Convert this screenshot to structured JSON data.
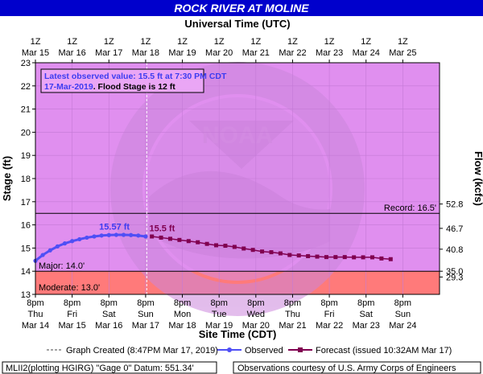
{
  "title": "ROCK RIVER AT MOLINE",
  "top_axis_title": "Universal Time (UTC)",
  "bottom_axis_title": "Site Time (CDT)",
  "colors": {
    "title_bg": "#0000cc",
    "plot_bg": "#e08fef",
    "flood_band": "#ff7a7a",
    "observed": "#4f4ff5",
    "forecast": "#800050",
    "reference_line": "#000000",
    "observed_label": "#3c3cf0",
    "forecast_label": "#800050"
  },
  "info_box": {
    "line1": "Latest observed value: 15.5 ft at 7:30 PM CDT",
    "line2_date": "17-Mar-2019",
    "line2_rest": ". Flood Stage is 12 ft"
  },
  "legend": {
    "created": "Graph Created (8:47PM Mar 17, 2019)",
    "observed": "Observed",
    "forecast": "Forecast (issued 10:32AM Mar 17)"
  },
  "footer": {
    "left": "MLII2(plotting HGIRG) \"Gage 0\" Datum: 551.34'",
    "right": "Observations courtesy of U.S. Army Corps of Engineers"
  },
  "chart_data": {
    "type": "line",
    "title": "ROCK RIVER AT MOLINE",
    "xlabel": "Site Time (CDT)",
    "x2label": "Universal Time (UTC)",
    "ylabel": "Stage (ft)",
    "y2label": "Flow (kcfs)",
    "ylim": [
      13,
      23
    ],
    "xlim_days": [
      14,
      25
    ],
    "yticks": [
      "13",
      "14",
      "15",
      "16",
      "17",
      "18",
      "19",
      "20",
      "21",
      "22",
      "23"
    ],
    "y2ticks": [
      {
        "stage": 13.75,
        "label": "29.3"
      },
      {
        "stage": 14.0,
        "label": "35.0"
      },
      {
        "stage": 14.95,
        "label": "40.8"
      },
      {
        "stage": 15.85,
        "label": "46.7"
      },
      {
        "stage": 16.9,
        "label": "52.8"
      }
    ],
    "bottom_ticks": [
      {
        "day": 14,
        "l1": "8pm",
        "l2": "Thu",
        "l3": "Mar 14"
      },
      {
        "day": 15,
        "l1": "8pm",
        "l2": "Fri",
        "l3": "Mar 15"
      },
      {
        "day": 16,
        "l1": "8pm",
        "l2": "Sat",
        "l3": "Mar 16"
      },
      {
        "day": 17,
        "l1": "8pm",
        "l2": "Sun",
        "l3": "Mar 17"
      },
      {
        "day": 18,
        "l1": "8pm",
        "l2": "Mon",
        "l3": "Mar 18"
      },
      {
        "day": 19,
        "l1": "8pm",
        "l2": "Tue",
        "l3": "Mar 19"
      },
      {
        "day": 20,
        "l1": "8pm",
        "l2": "Wed",
        "l3": "Mar 20"
      },
      {
        "day": 21,
        "l1": "8pm",
        "l2": "Thu",
        "l3": "Mar 21"
      },
      {
        "day": 22,
        "l1": "8pm",
        "l2": "Fri",
        "l3": "Mar 22"
      },
      {
        "day": 23,
        "l1": "8pm",
        "l2": "Sat",
        "l3": "Mar 23"
      },
      {
        "day": 24,
        "l1": "8pm",
        "l2": "Sun",
        "l3": "Mar 24"
      }
    ],
    "top_ticks": [
      {
        "day": 14,
        "l1": "1Z",
        "l2": "Mar 15"
      },
      {
        "day": 15,
        "l1": "1Z",
        "l2": "Mar 16"
      },
      {
        "day": 16,
        "l1": "1Z",
        "l2": "Mar 17"
      },
      {
        "day": 17,
        "l1": "1Z",
        "l2": "Mar 18"
      },
      {
        "day": 18,
        "l1": "1Z",
        "l2": "Mar 19"
      },
      {
        "day": 19,
        "l1": "1Z",
        "l2": "Mar 20"
      },
      {
        "day": 20,
        "l1": "1Z",
        "l2": "Mar 21"
      },
      {
        "day": 21,
        "l1": "1Z",
        "l2": "Mar 22"
      },
      {
        "day": 22,
        "l1": "1Z",
        "l2": "Mar 23"
      },
      {
        "day": 23,
        "l1": "1Z",
        "l2": "Mar 24"
      },
      {
        "day": 24,
        "l1": "1Z",
        "l2": "Mar 25"
      }
    ],
    "thresholds": [
      {
        "name": "Record",
        "label": "Record: 16.5'",
        "value": 16.5
      },
      {
        "name": "Major",
        "label": "Major: 14.0'",
        "value": 14.0
      },
      {
        "name": "Moderate",
        "label": "Moderate: 13.0'",
        "value": 13.0
      }
    ],
    "flood_stage": 12,
    "graph_created_day": 17.03,
    "series": [
      {
        "name": "Observed",
        "x_days": [
          14.0,
          14.2,
          14.4,
          14.6,
          14.8,
          15.0,
          15.2,
          15.4,
          15.6,
          15.8,
          16.0,
          16.2,
          16.4,
          16.6,
          16.8,
          17.0
        ],
        "stage": [
          14.45,
          14.7,
          14.9,
          15.07,
          15.2,
          15.3,
          15.38,
          15.45,
          15.5,
          15.54,
          15.56,
          15.57,
          15.57,
          15.56,
          15.54,
          15.5
        ]
      },
      {
        "name": "Forecast",
        "x_days": [
          17.17,
          17.42,
          17.67,
          17.92,
          18.17,
          18.42,
          18.67,
          18.92,
          19.17,
          19.42,
          19.67,
          19.92,
          20.17,
          20.42,
          20.67,
          20.92,
          21.17,
          21.42,
          21.67,
          21.92,
          22.17,
          22.42,
          22.67,
          22.92,
          23.17,
          23.42,
          23.67
        ],
        "stage": [
          15.5,
          15.45,
          15.4,
          15.35,
          15.3,
          15.25,
          15.18,
          15.12,
          15.1,
          15.05,
          14.98,
          14.92,
          14.85,
          14.82,
          14.77,
          14.7,
          14.68,
          14.65,
          14.63,
          14.61,
          14.61,
          14.61,
          14.6,
          14.6,
          14.6,
          14.55,
          14.52
        ]
      }
    ],
    "annotations": [
      {
        "text": "15.57 ft",
        "day": 16.15,
        "stage": 15.72,
        "series": "Observed"
      },
      {
        "text": "15.5 ft",
        "day": 17.1,
        "stage": 15.65,
        "series": "Forecast"
      }
    ]
  }
}
